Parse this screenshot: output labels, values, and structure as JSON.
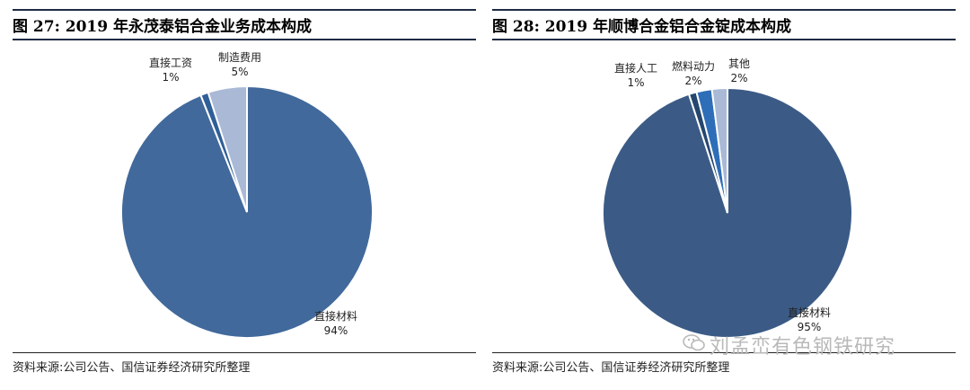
{
  "left": {
    "title": "图 27:  2019 年永茂泰铝合金业务成本构成",
    "source": "资料来源:公司公告、国信证券经济研究所整理"
  },
  "right": {
    "title": "图 28:  2019 年顺博合金铝合金锭成本构成",
    "source": "资料来源:公司公告、国信证券经济研究所整理"
  },
  "watermark": "刘孟峦有色钢铁研究",
  "chart_data": [
    {
      "type": "pie",
      "title": "2019 年永茂泰铝合金业务成本构成",
      "slices": [
        {
          "label": "直接材料",
          "pct_label": "94%",
          "value": 94,
          "color": "#41699b"
        },
        {
          "label": "直接工资",
          "pct_label": "1%",
          "value": 1,
          "color": "#2f5f98"
        },
        {
          "label": "制造费用",
          "pct_label": "5%",
          "value": 5,
          "color": "#a9b9d6"
        }
      ]
    },
    {
      "type": "pie",
      "title": "2019 年顺博合金铝合金锭成本构成",
      "slices": [
        {
          "label": "直接材料",
          "pct_label": "95%",
          "value": 95,
          "color": "#3b5b86"
        },
        {
          "label": "直接人工",
          "pct_label": "1%",
          "value": 1,
          "color": "#25476f"
        },
        {
          "label": "燃料动力",
          "pct_label": "2%",
          "value": 2,
          "color": "#2e6eb8"
        },
        {
          "label": "其他",
          "pct_label": "2%",
          "value": 2,
          "color": "#a9b9d6"
        }
      ]
    }
  ]
}
